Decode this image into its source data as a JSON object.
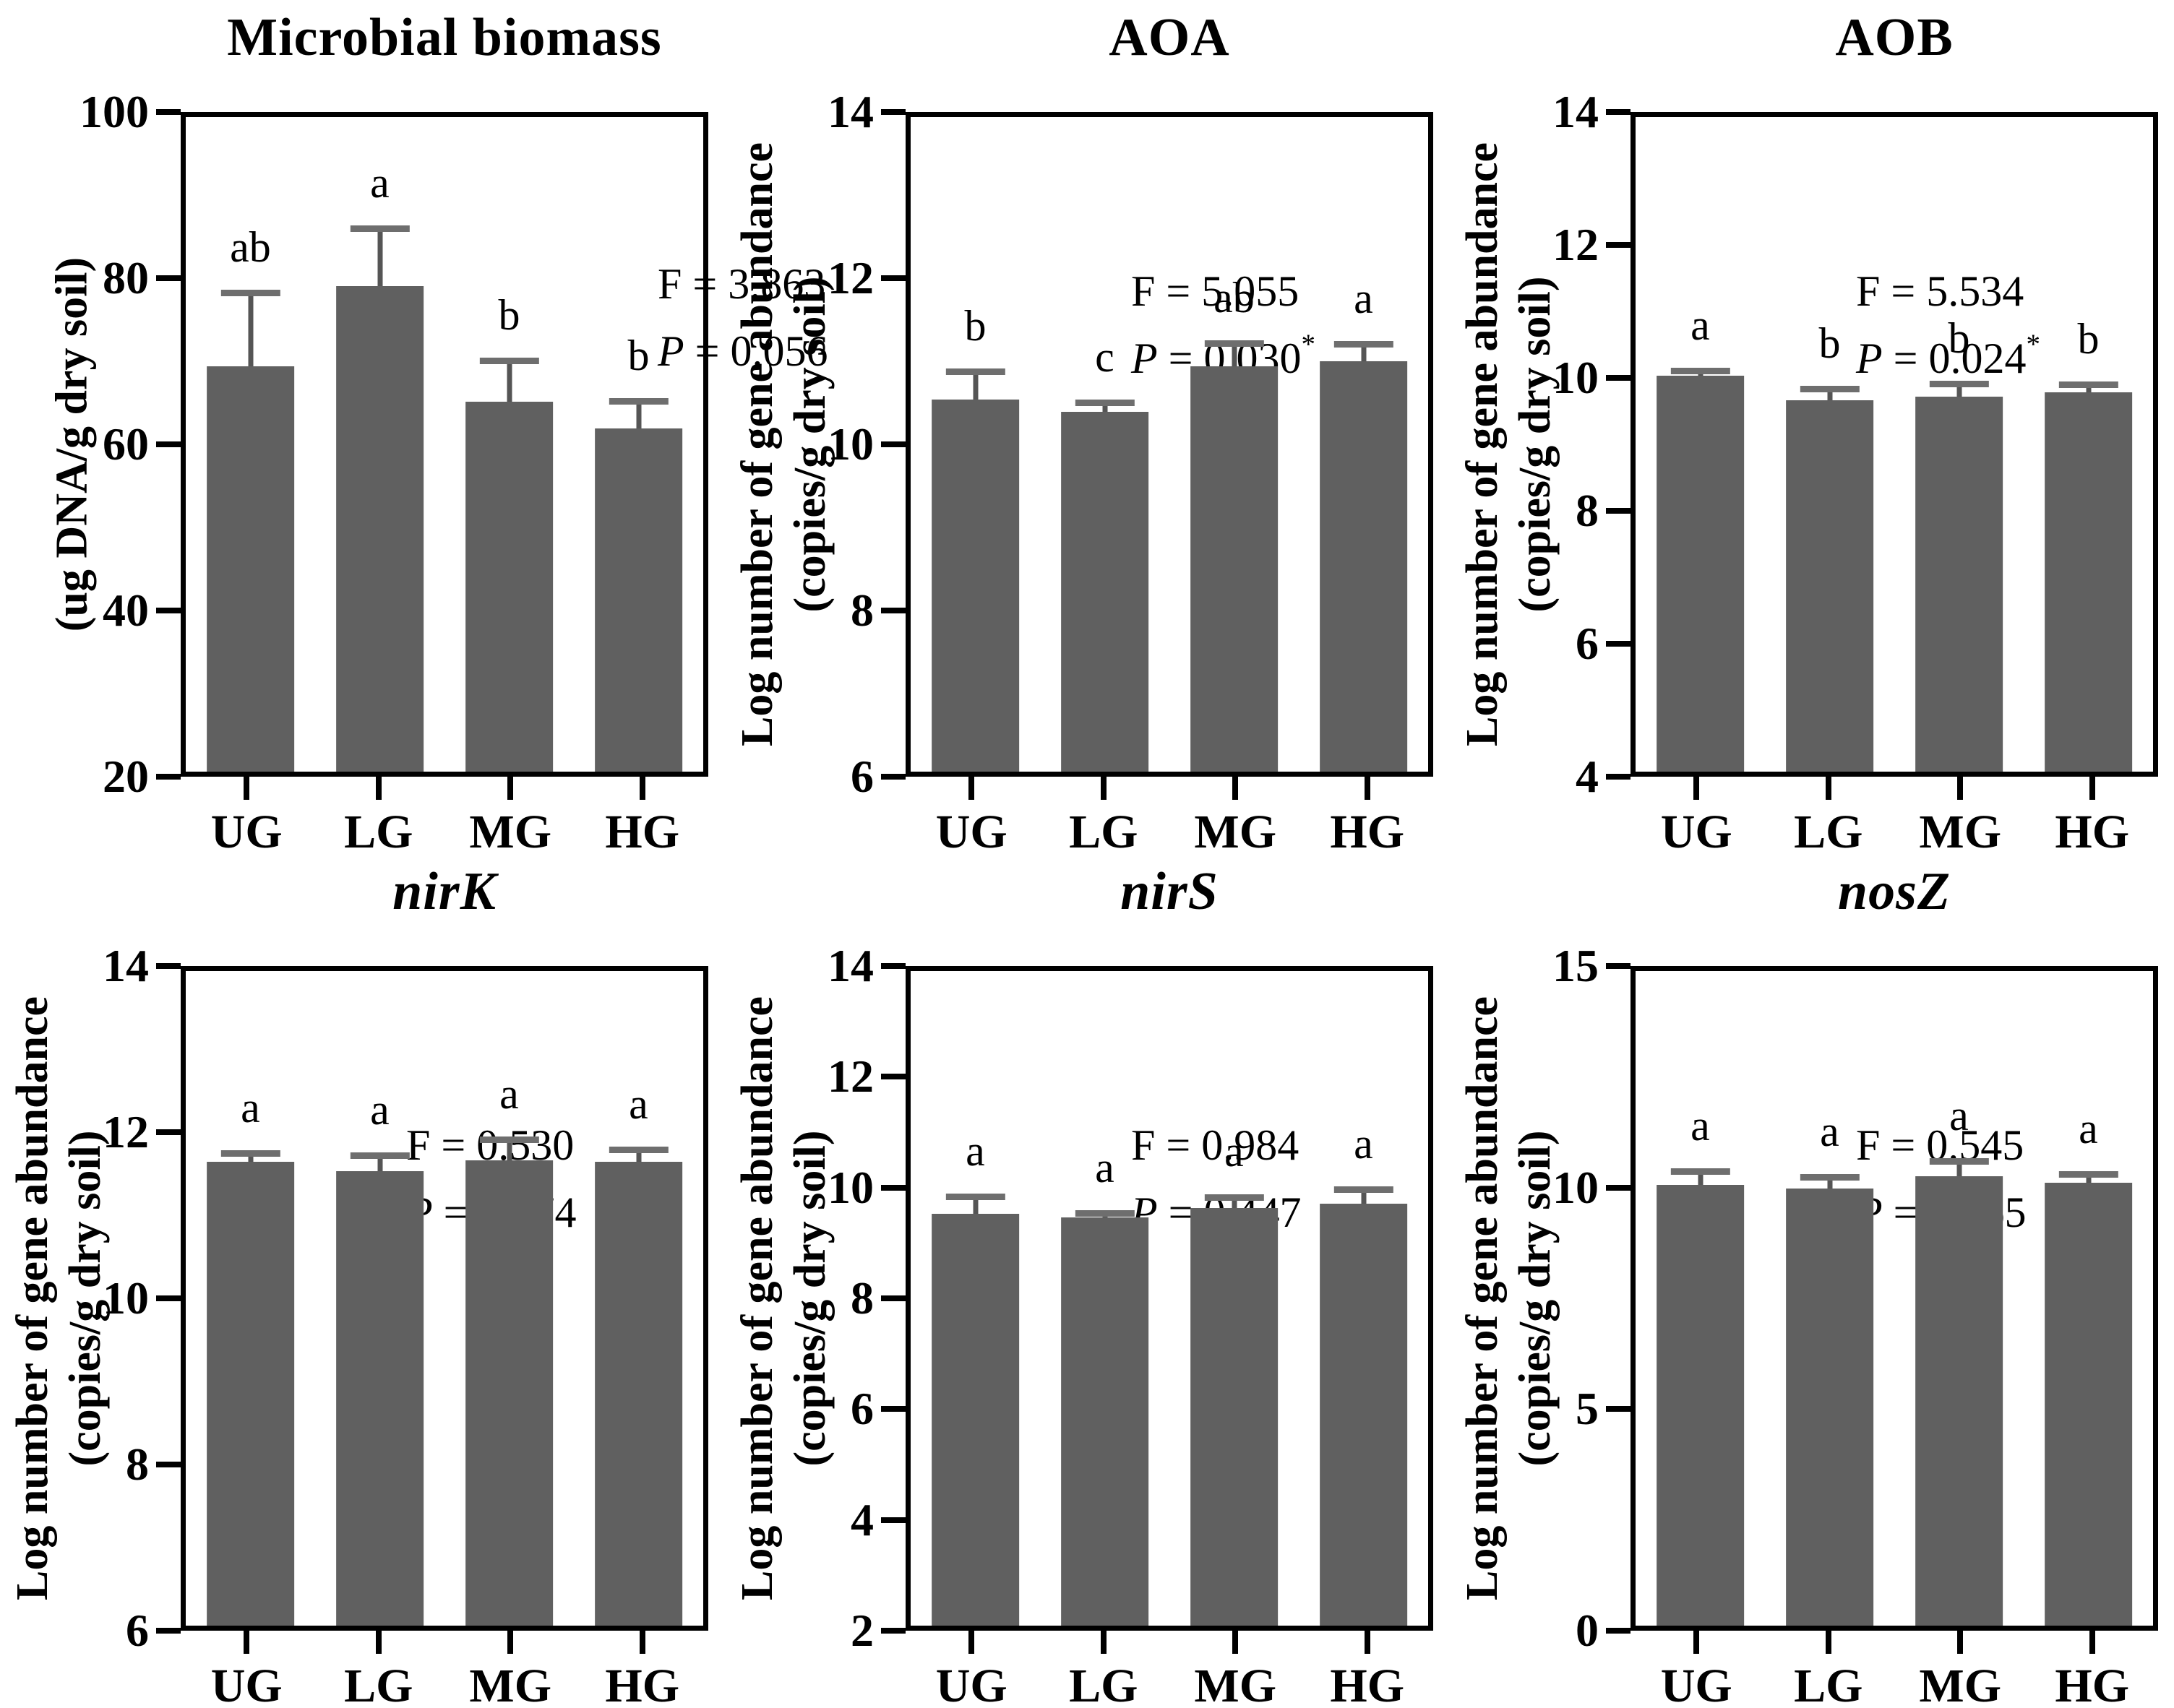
{
  "figure": {
    "background": "#ffffff",
    "bar_color": "#606060",
    "error_bar_color": "#555555",
    "axis_color": "#000000",
    "categories": [
      "UG",
      "LG",
      "MG",
      "HG"
    ]
  },
  "chart_data": [
    {
      "type": "bar",
      "title": "Microbial biomass",
      "title_italic": false,
      "stats": {
        "f_text": "F = 3.863",
        "p_symbol": "P",
        "p_rest": " = 0.056",
        "star": ""
      },
      "stats_position": "right",
      "ylabel_lines": [
        "(ug DNA/g dry soil)"
      ],
      "categories": [
        "UG",
        "LG",
        "MG",
        "HG"
      ],
      "values": [
        69.5,
        79.3,
        65.2,
        61.9
      ],
      "errors": [
        9.0,
        7.0,
        5.0,
        3.3
      ],
      "letters": [
        "ab",
        "a",
        "b",
        "b"
      ],
      "ylim": [
        20,
        100
      ],
      "yticks": [
        100,
        80,
        60,
        40,
        20
      ]
    },
    {
      "type": "bar",
      "title": "AOA",
      "title_italic": false,
      "stats": {
        "f_text": "F = 5.055",
        "p_symbol": "P",
        "p_rest": " = 0.030",
        "star": "*"
      },
      "stats_position": "left",
      "ylabel_lines": [
        "Log number of gene abundance",
        "(copies/g dry soil)"
      ],
      "categories": [
        "UG",
        "LG",
        "MG",
        "HG"
      ],
      "values": [
        10.55,
        10.4,
        10.95,
        11.02
      ],
      "errors": [
        0.33,
        0.1,
        0.28,
        0.2
      ],
      "letters": [
        "b",
        "c",
        "ab",
        "a"
      ],
      "ylim": [
        6,
        14
      ],
      "yticks": [
        14,
        12,
        10,
        8,
        6
      ]
    },
    {
      "type": "bar",
      "title": "AOB",
      "title_italic": false,
      "stats": {
        "f_text": "F = 5.534",
        "p_symbol": "P",
        "p_rest": " = 0.024",
        "star": "*"
      },
      "stats_position": "left",
      "ylabel_lines": [
        "Log number of gene abundance",
        "(copies/g dry soil)"
      ],
      "categories": [
        "UG",
        "LG",
        "MG",
        "HG"
      ],
      "values": [
        10.05,
        9.67,
        9.73,
        9.79
      ],
      "errors": [
        0.07,
        0.17,
        0.19,
        0.11
      ],
      "letters": [
        "a",
        "b",
        "b",
        "b"
      ],
      "ylim": [
        4,
        14
      ],
      "yticks": [
        14,
        12,
        10,
        8,
        6,
        4
      ]
    },
    {
      "type": "bar",
      "title": "nirK",
      "title_italic": true,
      "stats": {
        "f_text": "F = 0.530",
        "p_symbol": "P",
        "p_rest": " = 0.674",
        "star": ""
      },
      "stats_position": "left",
      "ylabel_lines": [
        "Log number of gene abundance",
        "(copies/g dry soil)"
      ],
      "categories": [
        "UG",
        "LG",
        "MG",
        "HG"
      ],
      "values": [
        11.67,
        11.55,
        11.69,
        11.67
      ],
      "errors": [
        0.1,
        0.19,
        0.24,
        0.14
      ],
      "letters": [
        "a",
        "a",
        "a",
        "a"
      ],
      "ylim": [
        6,
        14
      ],
      "yticks": [
        14,
        12,
        10,
        8,
        6
      ]
    },
    {
      "type": "bar",
      "title": "nirS",
      "title_italic": true,
      "stats": {
        "f_text": "F = 0.984",
        "p_symbol": "P",
        "p_rest": " = 0.447",
        "star": ""
      },
      "stats_position": "left",
      "ylabel_lines": [
        "Log number of gene abundance",
        "(copies/g dry soil)"
      ],
      "categories": [
        "UG",
        "LG",
        "MG",
        "HG"
      ],
      "values": [
        9.55,
        9.48,
        9.66,
        9.73
      ],
      "errors": [
        0.3,
        0.07,
        0.18,
        0.26
      ],
      "letters": [
        "a",
        "a",
        "a",
        "a"
      ],
      "ylim": [
        2,
        14
      ],
      "yticks": [
        14,
        12,
        10,
        8,
        6,
        4,
        2
      ]
    },
    {
      "type": "bar",
      "title": "nosZ",
      "title_italic": true,
      "stats": {
        "f_text": "F = 0.545",
        "p_symbol": "P",
        "p_rest": " = 0.665",
        "star": ""
      },
      "stats_position": "left",
      "ylabel_lines": [
        "Log number of gene abundance",
        "(copies/g dry soil)"
      ],
      "categories": [
        "UG",
        "LG",
        "MG",
        "HG"
      ],
      "values": [
        10.1,
        10.02,
        10.3,
        10.15
      ],
      "errors": [
        0.3,
        0.24,
        0.33,
        0.18
      ],
      "letters": [
        "a",
        "a",
        "a",
        "a"
      ],
      "ylim": [
        0,
        15
      ],
      "yticks": [
        15,
        10,
        5,
        0
      ]
    }
  ]
}
